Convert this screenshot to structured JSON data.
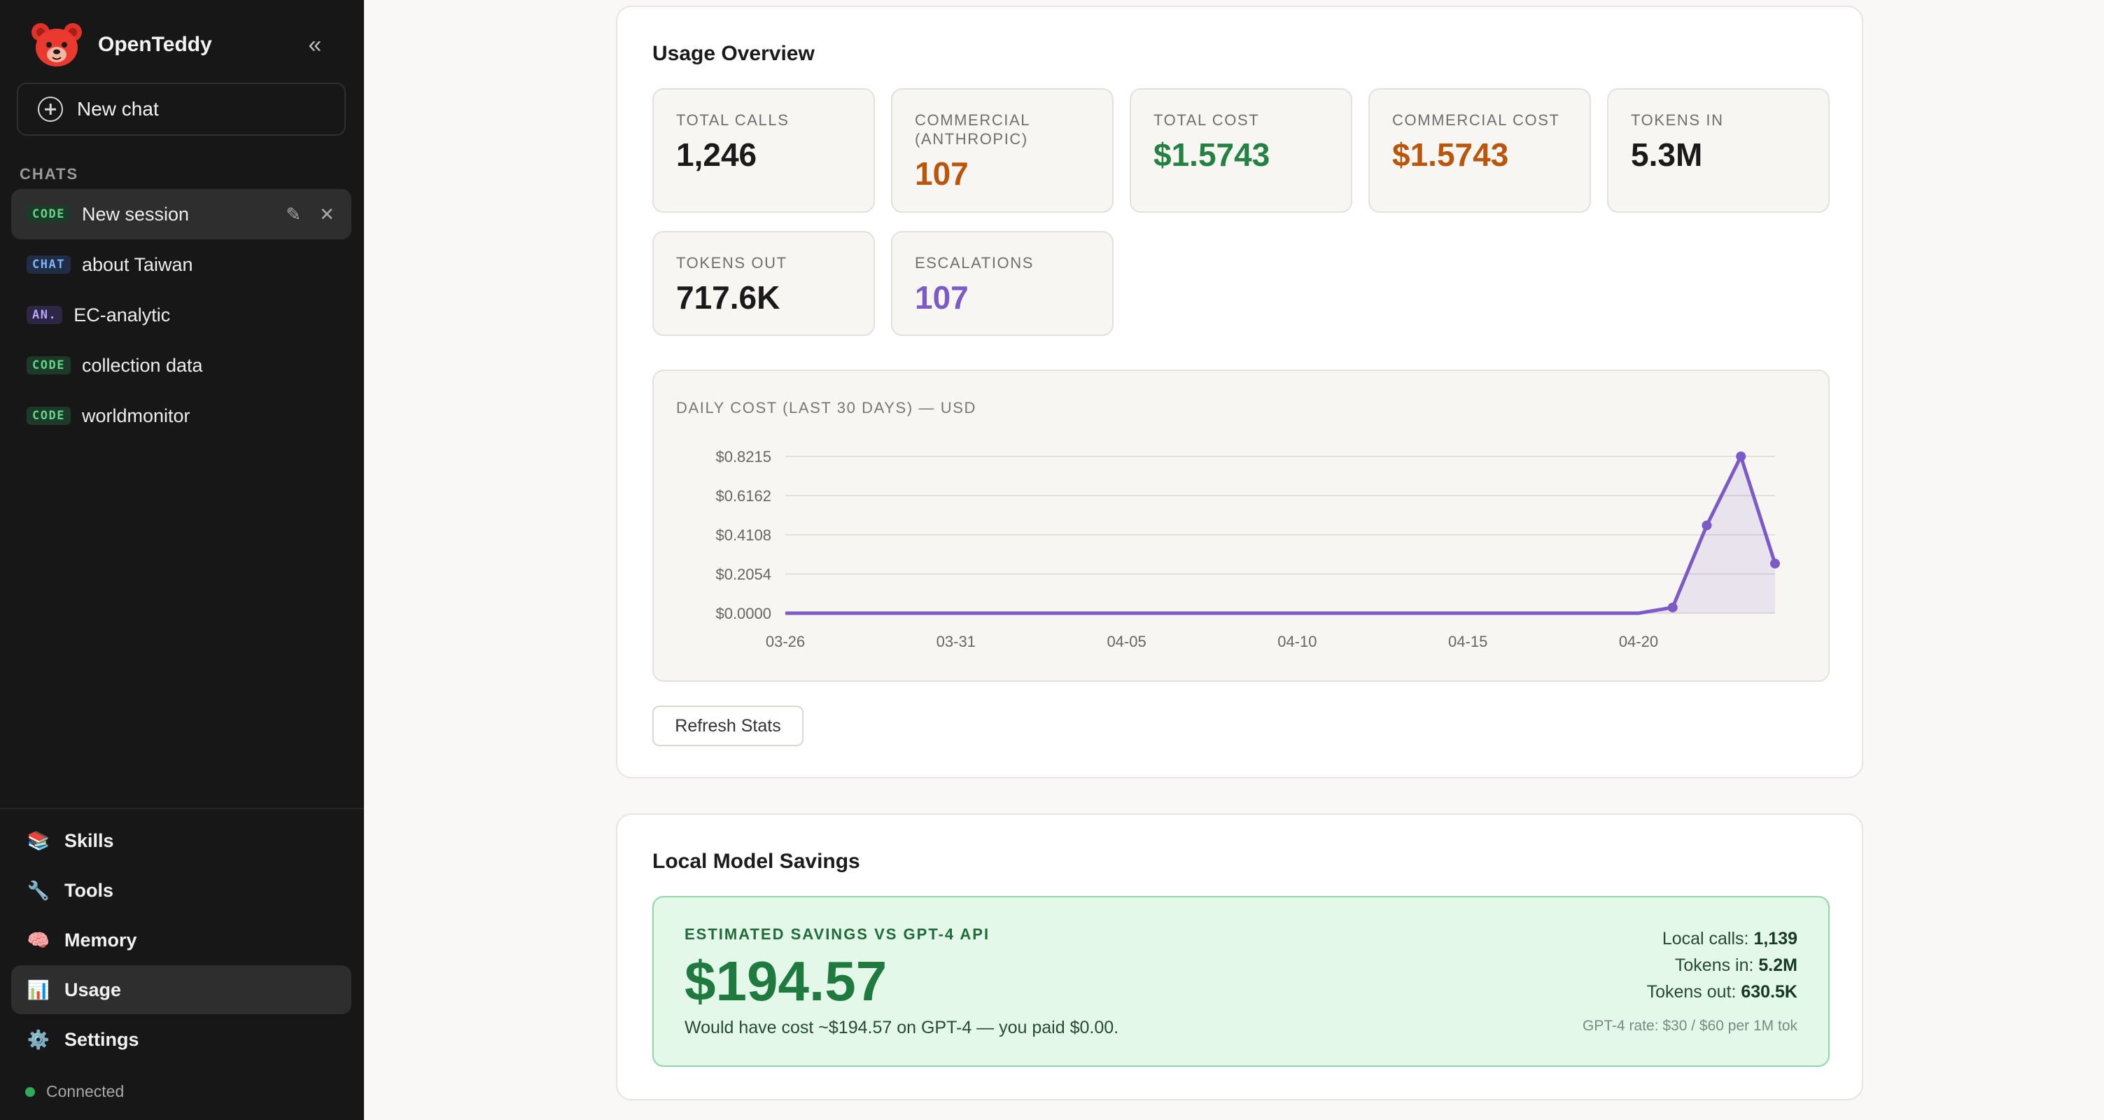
{
  "app": {
    "name": "OpenTeddy",
    "collapse_icon": "«"
  },
  "sidebar": {
    "new_chat_label": "New chat",
    "section_label": "CHATS",
    "chats": [
      {
        "badge": "CODE",
        "title": "New session",
        "active": true
      },
      {
        "badge": "CHAT",
        "title": "about Taiwan"
      },
      {
        "badge": "AN.",
        "title": "EC-analytic"
      },
      {
        "badge": "CODE",
        "title": "collection data"
      },
      {
        "badge": "CODE",
        "title": "worldmonitor"
      }
    ],
    "active_actions": {
      "edit_icon": "✎",
      "close_icon": "✕"
    },
    "nav": [
      {
        "icon": "📚",
        "label": "Skills"
      },
      {
        "icon": "🔧",
        "label": "Tools"
      },
      {
        "icon": "🧠",
        "label": "Memory"
      },
      {
        "icon": "📊",
        "label": "Usage",
        "active": true
      },
      {
        "icon": "⚙️",
        "label": "Settings"
      }
    ],
    "status": "Connected",
    "status_color": "#2eaa5a"
  },
  "usage": {
    "title": "Usage Overview",
    "stats": [
      {
        "label": "TOTAL CALLS",
        "value": "1,246"
      },
      {
        "label": "COMMERCIAL (ANTHROPIC)",
        "value": "107"
      },
      {
        "label": "TOTAL COST",
        "value": "$1.5743"
      },
      {
        "label": "COMMERCIAL COST",
        "value": "$1.5743"
      },
      {
        "label": "TOKENS IN",
        "value": "5.3M"
      },
      {
        "label": "TOKENS OUT",
        "value": "717.6K"
      },
      {
        "label": "ESCALATIONS",
        "value": "107"
      }
    ],
    "chart_title": "DAILY COST (LAST 30 DAYS) — USD",
    "refresh_label": "Refresh Stats"
  },
  "chart_data": {
    "type": "area",
    "title": "DAILY COST (LAST 30 DAYS) — USD",
    "color": "#7c5bc7",
    "y_ticks": [
      "$0.0000",
      "$0.2054",
      "$0.4108",
      "$0.6162",
      "$0.8215"
    ],
    "ylim": [
      0,
      0.8215
    ],
    "x_ticks": [
      "03-26",
      "03-31",
      "04-05",
      "04-10",
      "04-15",
      "04-20"
    ],
    "x": [
      "03-26",
      "03-27",
      "03-28",
      "03-29",
      "03-30",
      "03-31",
      "04-01",
      "04-02",
      "04-03",
      "04-04",
      "04-05",
      "04-06",
      "04-07",
      "04-08",
      "04-09",
      "04-10",
      "04-11",
      "04-12",
      "04-13",
      "04-14",
      "04-15",
      "04-16",
      "04-17",
      "04-18",
      "04-19",
      "04-20",
      "04-21",
      "04-22",
      "04-23",
      "04-24"
    ],
    "values": [
      0,
      0,
      0,
      0,
      0,
      0,
      0,
      0,
      0,
      0,
      0,
      0,
      0,
      0,
      0,
      0,
      0,
      0,
      0,
      0,
      0,
      0,
      0,
      0,
      0,
      0,
      0.03,
      0.46,
      0.8215,
      0.26
    ],
    "markers_from_index": 26,
    "grid": true
  },
  "savings": {
    "title": "Local Model Savings",
    "label": "ESTIMATED SAVINGS VS GPT-4 API",
    "amount": "$194.57",
    "note": "Would have cost ~$194.57 on GPT-4 — you paid $0.00.",
    "local_calls_label": "Local calls:",
    "local_calls": "1,139",
    "tokens_in_label": "Tokens in:",
    "tokens_in": "5.2M",
    "tokens_out_label": "Tokens out:",
    "tokens_out": "630.5K",
    "rate": "GPT-4 rate: $30 / $60 per 1M tok"
  }
}
